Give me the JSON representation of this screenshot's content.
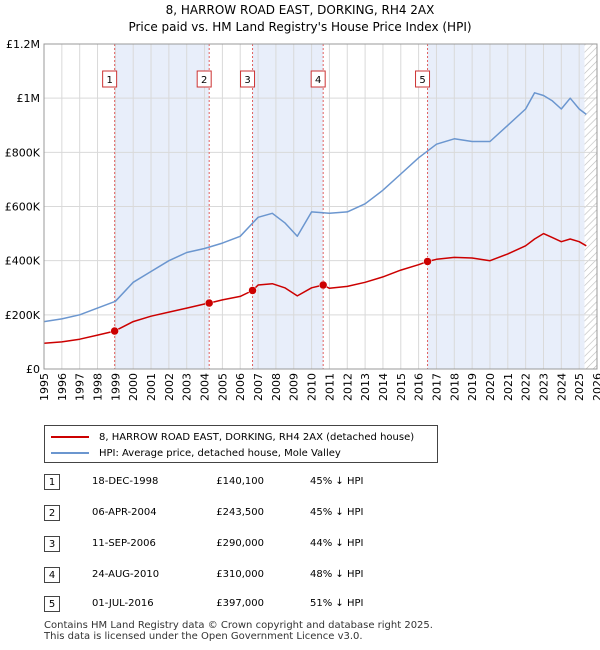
{
  "title_line1": "8, HARROW ROAD EAST, DORKING, RH4 2AX",
  "title_line2": "Price paid vs. HM Land Registry's House Price Index (HPI)",
  "legend": {
    "property_label": "8, HARROW ROAD EAST, DORKING, RH4 2AX (detached house)",
    "hpi_label": "HPI: Average price, detached house, Mole Valley"
  },
  "colors": {
    "property": "#cc0000",
    "hpi": "#6b96cf",
    "shade": "#e8eefa",
    "grid": "#d9d9d9"
  },
  "sales": [
    {
      "n": "1",
      "date": "18-DEC-1998",
      "price": "£140,100",
      "hpi": "45% ↓ HPI"
    },
    {
      "n": "2",
      "date": "06-APR-2004",
      "price": "£243,500",
      "hpi": "45% ↓ HPI"
    },
    {
      "n": "3",
      "date": "11-SEP-2006",
      "price": "£290,000",
      "hpi": "44% ↓ HPI"
    },
    {
      "n": "4",
      "date": "24-AUG-2010",
      "price": "£310,000",
      "hpi": "48% ↓ HPI"
    },
    {
      "n": "5",
      "date": "01-JUL-2016",
      "price": "£397,000",
      "hpi": "51% ↓ HPI"
    }
  ],
  "footer_line1": "Contains HM Land Registry data © Crown copyright and database right 2025.",
  "footer_line2": "This data is licensed under the Open Government Licence v3.0.",
  "chart_data": {
    "type": "line",
    "title": "8, HARROW ROAD EAST, DORKING, RH4 2AX",
    "subtitle": "Price paid vs. HM Land Registry's House Price Index (HPI)",
    "xlim": [
      1995,
      2026
    ],
    "ylim": [
      0,
      1200000
    ],
    "x_ticks": [
      1995,
      1996,
      1997,
      1998,
      1999,
      2000,
      2001,
      2002,
      2003,
      2004,
      2005,
      2006,
      2007,
      2008,
      2009,
      2010,
      2011,
      2012,
      2013,
      2014,
      2015,
      2016,
      2017,
      2018,
      2019,
      2020,
      2021,
      2022,
      2023,
      2024,
      2025,
      2026
    ],
    "y_ticks": [
      {
        "value": 0,
        "label": "£0"
      },
      {
        "value": 200000,
        "label": "£200K"
      },
      {
        "value": 400000,
        "label": "£400K"
      },
      {
        "value": 600000,
        "label": "£600K"
      },
      {
        "value": 800000,
        "label": "£800K"
      },
      {
        "value": 1000000,
        "label": "£1M"
      },
      {
        "value": 1200000,
        "label": "£1.2M"
      }
    ],
    "shaded_ranges": [
      [
        1998.96,
        2004.26
      ],
      [
        2006.69,
        2010.65
      ],
      [
        2016.5,
        2025.3
      ]
    ],
    "hatched_from": 2025.3,
    "sale_markers": [
      {
        "label": "1",
        "x": 1998.96,
        "y": 140100
      },
      {
        "label": "2",
        "x": 2004.26,
        "y": 243500
      },
      {
        "label": "3",
        "x": 2006.69,
        "y": 290000
      },
      {
        "label": "4",
        "x": 2010.65,
        "y": 310000
      },
      {
        "label": "5",
        "x": 2016.5,
        "y": 397000
      }
    ],
    "series": [
      {
        "name": "8, HARROW ROAD EAST, DORKING, RH4 2AX (detached house)",
        "x": [
          1995,
          1996,
          1997,
          1998,
          1998.96,
          2000,
          2001,
          2002,
          2003,
          2004,
          2004.26,
          2005,
          2006,
          2006.69,
          2007,
          2007.8,
          2008.5,
          2009.2,
          2010,
          2010.65,
          2011,
          2012,
          2013,
          2014,
          2015,
          2016,
          2016.5,
          2017,
          2018,
          2019,
          2020,
          2021,
          2022,
          2022.5,
          2023,
          2023.5,
          2024,
          2024.5,
          2025,
          2025.4
        ],
        "y": [
          95000,
          100000,
          110000,
          125000,
          140100,
          175000,
          195000,
          210000,
          225000,
          240000,
          243500,
          255000,
          268000,
          290000,
          310000,
          315000,
          300000,
          270000,
          300000,
          310000,
          298000,
          305000,
          320000,
          340000,
          365000,
          385000,
          397000,
          405000,
          412000,
          410000,
          400000,
          425000,
          455000,
          480000,
          500000,
          485000,
          470000,
          480000,
          470000,
          455000
        ]
      },
      {
        "name": "HPI: Average price, detached house, Mole Valley",
        "x": [
          1995,
          1996,
          1997,
          1998,
          1999,
          2000,
          2001,
          2002,
          2003,
          2004,
          2005,
          2006,
          2007,
          2007.8,
          2008.5,
          2009.2,
          2010,
          2011,
          2012,
          2013,
          2014,
          2015,
          2016,
          2017,
          2018,
          2019,
          2020,
          2021,
          2022,
          2022.5,
          2023,
          2023.5,
          2024,
          2024.5,
          2025,
          2025.4
        ],
        "y": [
          175000,
          185000,
          200000,
          225000,
          250000,
          320000,
          360000,
          400000,
          430000,
          445000,
          465000,
          490000,
          560000,
          575000,
          540000,
          490000,
          580000,
          575000,
          580000,
          610000,
          660000,
          720000,
          780000,
          830000,
          850000,
          840000,
          840000,
          900000,
          960000,
          1020000,
          1010000,
          990000,
          960000,
          1000000,
          960000,
          940000
        ]
      }
    ]
  }
}
